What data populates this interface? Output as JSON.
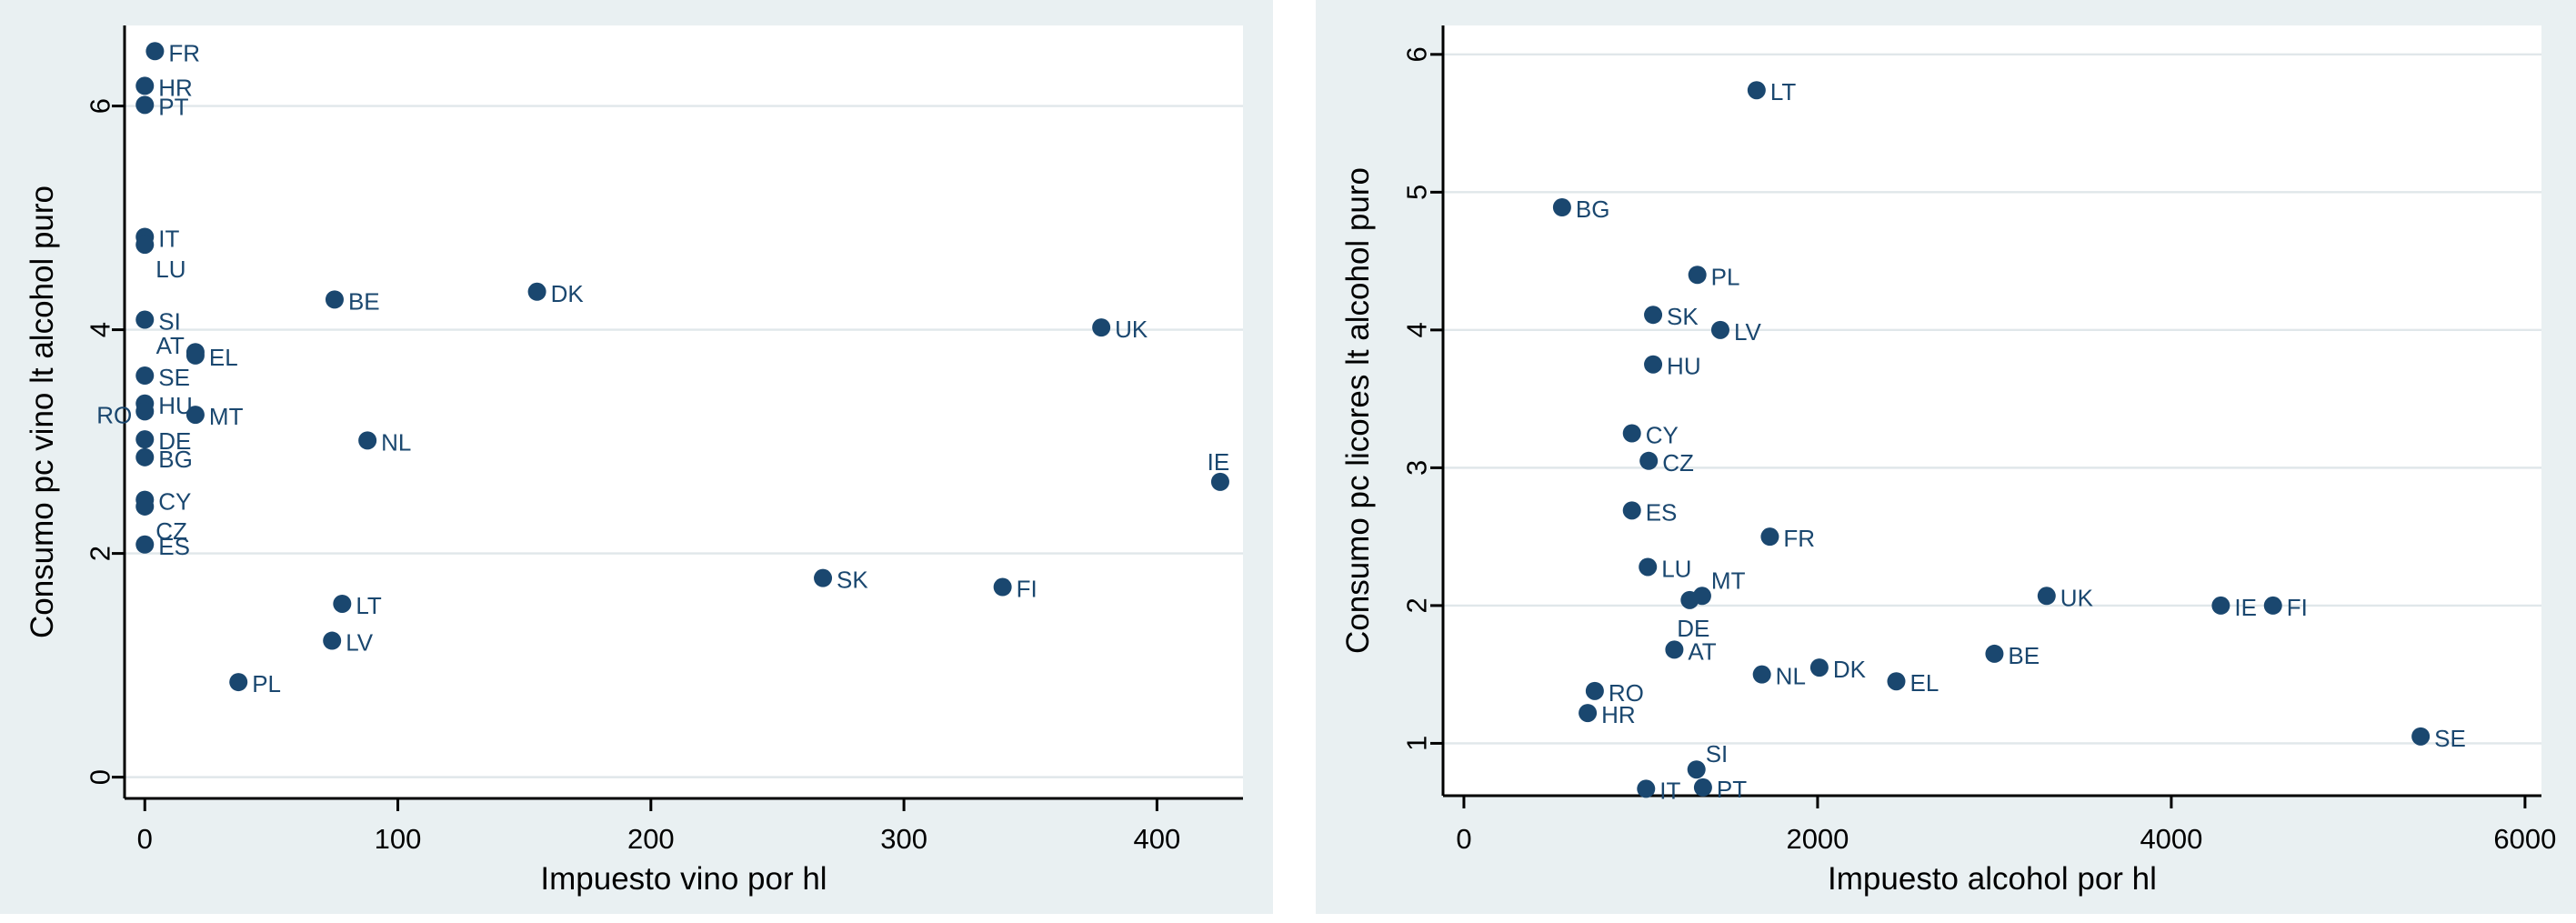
{
  "style": {
    "panel_bg": "#e9f0f2",
    "plot_bg": "#ffffff",
    "grid_color": "#e0e7ea",
    "axis_color": "#000000",
    "dot_color": "#1a476f",
    "marker_label_color": "#1a476f",
    "tick_label_color": "#000000"
  },
  "chart_data": [
    {
      "type": "scatter",
      "title": "",
      "xlabel": "Impuesto vino por hl",
      "ylabel": "Consumo pc vino lt alcohol puro",
      "xlim": [
        -8,
        434
      ],
      "ylim": [
        -0.19,
        6.72
      ],
      "xticks": [
        0,
        100,
        200,
        300,
        400
      ],
      "yticks": [
        0,
        2,
        4,
        6
      ],
      "grid": "horizontal",
      "y_tick_labels_rotated": true,
      "points": [
        {
          "label": "FR",
          "x": 4,
          "y": 6.49,
          "pos": "r"
        },
        {
          "label": "HR",
          "x": 0,
          "y": 6.18,
          "pos": "r"
        },
        {
          "label": "PT",
          "x": 0,
          "y": 6.01,
          "pos": "r"
        },
        {
          "label": "IT",
          "x": 0,
          "y": 4.83,
          "pos": "r"
        },
        {
          "label": "LU",
          "x": 0,
          "y": 4.76,
          "pos": "br"
        },
        {
          "label": "BE",
          "x": 75,
          "y": 4.27,
          "pos": "r"
        },
        {
          "label": "DK",
          "x": 155,
          "y": 4.34,
          "pos": "r"
        },
        {
          "label": "UK",
          "x": 378,
          "y": 4.02,
          "pos": "r"
        },
        {
          "label": "SI",
          "x": 0,
          "y": 4.09,
          "pos": "r"
        },
        {
          "label": "AT",
          "x": 20,
          "y": 3.8,
          "pos": "la"
        },
        {
          "label": "EL",
          "x": 20,
          "y": 3.77,
          "pos": "r"
        },
        {
          "label": "SE",
          "x": 0,
          "y": 3.59,
          "pos": "r"
        },
        {
          "label": "HU",
          "x": 0,
          "y": 3.34,
          "pos": "r"
        },
        {
          "label": "RO",
          "x": 0,
          "y": 3.27,
          "pos": "l"
        },
        {
          "label": "MT",
          "x": 20,
          "y": 3.24,
          "pos": "r"
        },
        {
          "label": "DE",
          "x": 0,
          "y": 3.02,
          "pos": "r"
        },
        {
          "label": "BG",
          "x": 0,
          "y": 2.86,
          "pos": "r"
        },
        {
          "label": "NL",
          "x": 88,
          "y": 3.01,
          "pos": "r"
        },
        {
          "label": "CY",
          "x": 0,
          "y": 2.48,
          "pos": "r"
        },
        {
          "label": "CZ",
          "x": 0,
          "y": 2.42,
          "pos": "br"
        },
        {
          "label": "ES",
          "x": 0,
          "y": 2.08,
          "pos": "r"
        },
        {
          "label": "SK",
          "x": 268,
          "y": 1.78,
          "pos": "r"
        },
        {
          "label": "FI",
          "x": 339,
          "y": 1.7,
          "pos": "r"
        },
        {
          "label": "LT",
          "x": 78,
          "y": 1.55,
          "pos": "r"
        },
        {
          "label": "LV",
          "x": 74,
          "y": 1.22,
          "pos": "r"
        },
        {
          "label": "PL",
          "x": 37,
          "y": 0.85,
          "pos": "r"
        },
        {
          "label": "IE",
          "x": 425,
          "y": 2.64,
          "pos": "a"
        }
      ]
    },
    {
      "type": "scatter",
      "title": "",
      "xlabel": "Impuesto alcohol por hl",
      "ylabel": "Consumo pc licores lt alcohol puro",
      "xlim": [
        -118,
        6093
      ],
      "ylim": [
        0.62,
        6.21
      ],
      "xticks": [
        0,
        2000,
        4000,
        6000
      ],
      "yticks": [
        1,
        2,
        3,
        4,
        5,
        6
      ],
      "grid": "horizontal",
      "y_tick_labels_rotated": true,
      "points": [
        {
          "label": "LT",
          "x": 1655,
          "y": 5.74,
          "pos": "r"
        },
        {
          "label": "BG",
          "x": 555,
          "y": 4.89,
          "pos": "r"
        },
        {
          "label": "PL",
          "x": 1320,
          "y": 4.4,
          "pos": "r"
        },
        {
          "label": "SK",
          "x": 1070,
          "y": 4.11,
          "pos": "r"
        },
        {
          "label": "LV",
          "x": 1450,
          "y": 4.0,
          "pos": "r"
        },
        {
          "label": "HU",
          "x": 1070,
          "y": 3.75,
          "pos": "r"
        },
        {
          "label": "CY",
          "x": 950,
          "y": 3.25,
          "pos": "r"
        },
        {
          "label": "CZ",
          "x": 1045,
          "y": 3.05,
          "pos": "r"
        },
        {
          "label": "ES",
          "x": 950,
          "y": 2.69,
          "pos": "r"
        },
        {
          "label": "FR",
          "x": 1730,
          "y": 2.5,
          "pos": "r"
        },
        {
          "label": "LU",
          "x": 1040,
          "y": 2.28,
          "pos": "r"
        },
        {
          "label": "MT",
          "x": 1347,
          "y": 2.07,
          "pos": "ar"
        },
        {
          "label": "DE",
          "x": 1277,
          "y": 2.04,
          "pos": "b"
        },
        {
          "label": "AT",
          "x": 1190,
          "y": 1.68,
          "pos": "r"
        },
        {
          "label": "NL",
          "x": 1685,
          "y": 1.5,
          "pos": "r"
        },
        {
          "label": "DK",
          "x": 2010,
          "y": 1.55,
          "pos": "r"
        },
        {
          "label": "EL",
          "x": 2445,
          "y": 1.45,
          "pos": "r"
        },
        {
          "label": "RO",
          "x": 740,
          "y": 1.38,
          "pos": "r"
        },
        {
          "label": "HR",
          "x": 700,
          "y": 1.22,
          "pos": "r"
        },
        {
          "label": "BE",
          "x": 3000,
          "y": 1.65,
          "pos": "r"
        },
        {
          "label": "UK",
          "x": 3295,
          "y": 2.07,
          "pos": "r"
        },
        {
          "label": "IE",
          "x": 4280,
          "y": 2.0,
          "pos": "r"
        },
        {
          "label": "FI",
          "x": 4575,
          "y": 2.0,
          "pos": "r"
        },
        {
          "label": "SE",
          "x": 5410,
          "y": 1.05,
          "pos": "r"
        },
        {
          "label": "IT",
          "x": 1030,
          "y": 0.67,
          "pos": "r"
        },
        {
          "label": "SI",
          "x": 1315,
          "y": 0.81,
          "pos": "ar"
        },
        {
          "label": "PT",
          "x": 1352,
          "y": 0.68,
          "pos": "r"
        }
      ]
    }
  ]
}
